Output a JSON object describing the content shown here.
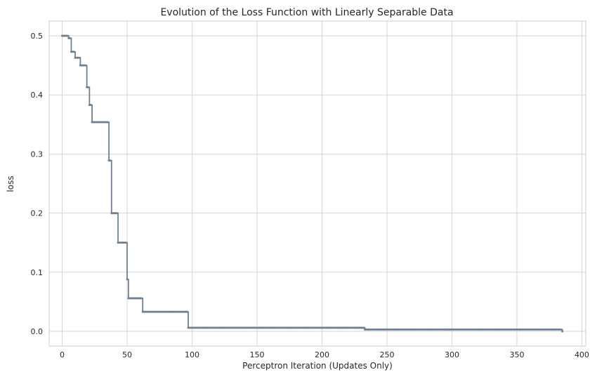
{
  "chart_data": {
    "type": "line",
    "title": "Evolution of the Loss Function with Linearly Separable Data",
    "xlabel": "Perceptron Iteration (Updates Only)",
    "ylabel": "loss",
    "xlim": [
      -10,
      403
    ],
    "ylim": [
      -0.025,
      0.525
    ],
    "xticks": [
      0,
      50,
      100,
      150,
      200,
      250,
      300,
      350,
      400
    ],
    "yticks": [
      0.0,
      0.1,
      0.2,
      0.3,
      0.4,
      0.5
    ],
    "ytick_labels": [
      "0.0",
      "0.1",
      "0.2",
      "0.3",
      "0.4",
      "0.5"
    ],
    "grid": true,
    "line_color": "#708090",
    "marker": "dot",
    "series": [
      {
        "steps": [
          {
            "from": 0,
            "to": 4,
            "y": 0.5
          },
          {
            "from": 5,
            "to": 6,
            "y": 0.496
          },
          {
            "from": 7,
            "to": 9,
            "y": 0.473
          },
          {
            "from": 10,
            "to": 13,
            "y": 0.463
          },
          {
            "from": 14,
            "to": 18,
            "y": 0.45
          },
          {
            "from": 19,
            "to": 20,
            "y": 0.413
          },
          {
            "from": 21,
            "to": 22,
            "y": 0.383
          },
          {
            "from": 23,
            "to": 35,
            "y": 0.354
          },
          {
            "from": 36,
            "to": 37,
            "y": 0.289
          },
          {
            "from": 38,
            "to": 42,
            "y": 0.2
          },
          {
            "from": 43,
            "to": 49,
            "y": 0.15
          },
          {
            "from": 50,
            "to": 50,
            "y": 0.088
          },
          {
            "from": 51,
            "to": 61,
            "y": 0.056
          },
          {
            "from": 62,
            "to": 96,
            "y": 0.033
          },
          {
            "from": 97,
            "to": 232,
            "y": 0.006
          },
          {
            "from": 233,
            "to": 384,
            "y": 0.003
          },
          {
            "from": 385,
            "to": 385,
            "y": 0.0
          }
        ]
      }
    ]
  }
}
